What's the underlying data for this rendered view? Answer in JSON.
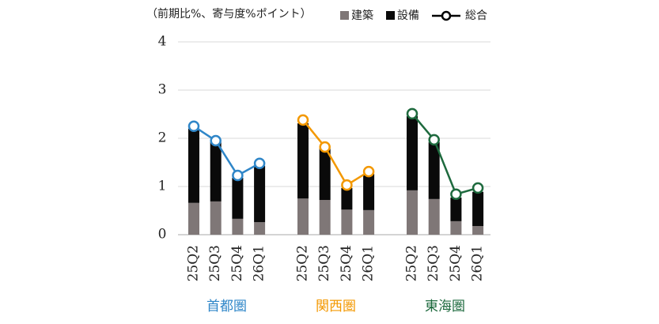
{
  "chart_data": {
    "type": "bar",
    "stacked": true,
    "title": "（前期比%、寄与度%ポイント）",
    "categories": [
      "25Q2",
      "25Q3",
      "25Q4",
      "26Q1",
      "25Q2",
      "25Q3",
      "25Q4",
      "26Q1",
      "25Q2",
      "25Q3",
      "25Q4",
      "26Q1"
    ],
    "groups": [
      {
        "name": "首都圏",
        "color": "#2f86c8",
        "size": 4
      },
      {
        "name": "関西圏",
        "color": "#f39800",
        "size": 4
      },
      {
        "name": "東海圏",
        "color": "#1e6a3e",
        "size": 4
      }
    ],
    "series": [
      {
        "name": "建築",
        "color": "#7f7777",
        "values": [
          0.66,
          0.69,
          0.33,
          0.26,
          0.75,
          0.72,
          0.52,
          0.51,
          0.92,
          0.74,
          0.28,
          0.18
        ]
      },
      {
        "name": "設備",
        "color": "#0a0a0a",
        "values": [
          1.54,
          1.23,
          0.85,
          1.17,
          1.56,
          1.07,
          0.45,
          0.75,
          1.54,
          1.18,
          0.49,
          0.71
        ]
      },
      {
        "name": "総合",
        "type": "line",
        "color": "#000000",
        "values": [
          2.25,
          1.95,
          1.23,
          1.48,
          2.38,
          1.82,
          1.03,
          1.31,
          2.51,
          1.97,
          0.84,
          0.97
        ]
      }
    ],
    "ylim": [
      0,
      4
    ],
    "yticks": [
      0,
      1,
      2,
      3,
      4
    ],
    "grid": true
  }
}
